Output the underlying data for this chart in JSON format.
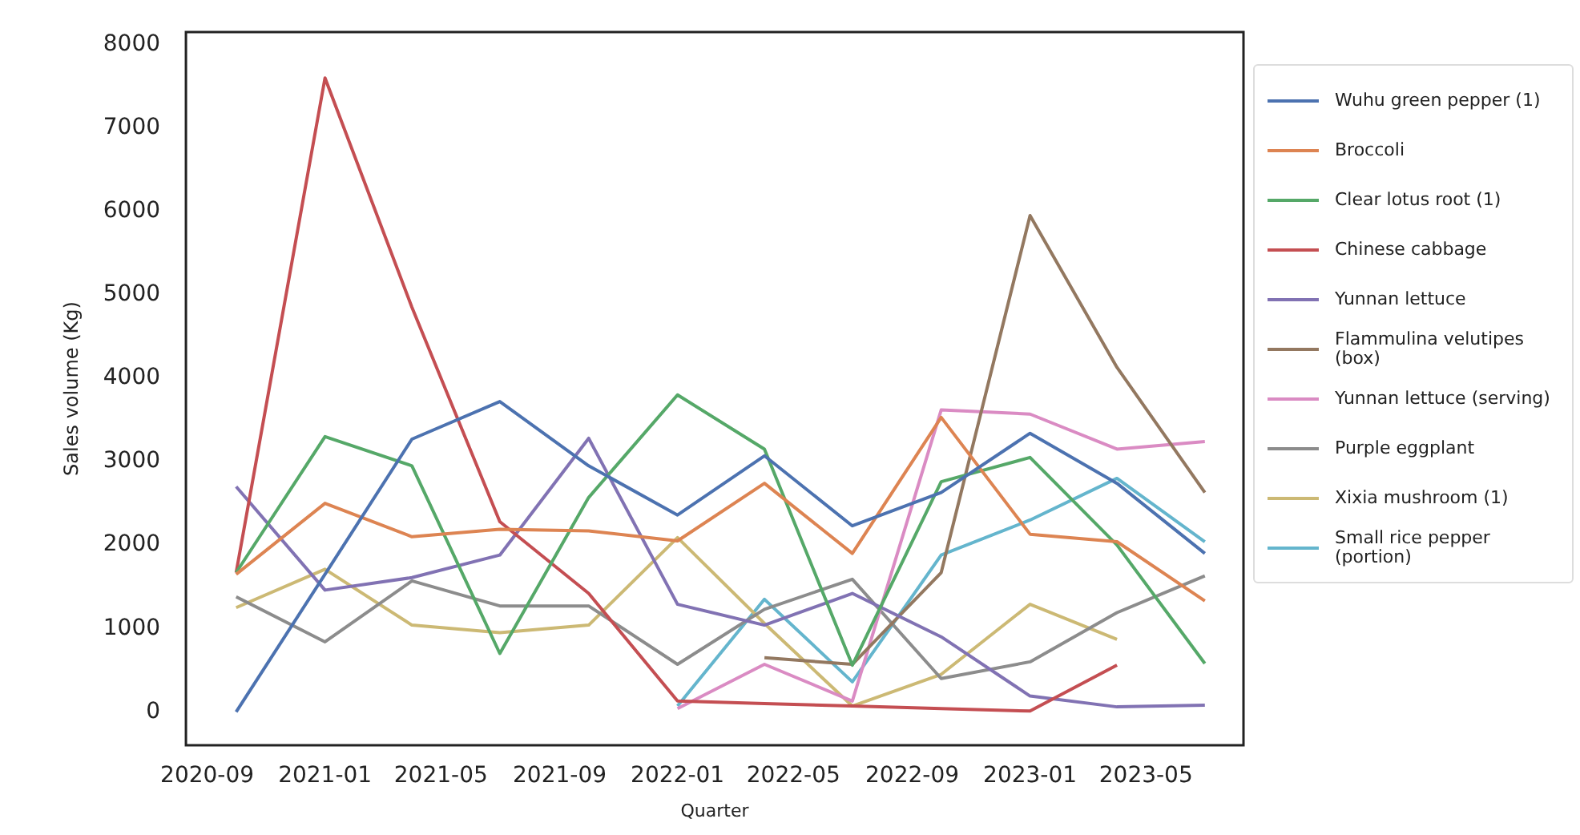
{
  "chart_data": {
    "type": "line",
    "xlabel": "Quarter",
    "ylabel": "Sales volume (Kg)",
    "x": [
      "2020-10-01",
      "2021-01-01",
      "2021-04-01",
      "2021-07-01",
      "2021-10-01",
      "2022-01-01",
      "2022-04-01",
      "2022-07-01",
      "2022-10-01",
      "2023-01-01",
      "2023-04-01",
      "2023-07-01"
    ],
    "series": [
      {
        "name": "Wuhu green pepper (1)",
        "color": "#4c72b0",
        "values": [
          0,
          1650,
          3270,
          3720,
          2950,
          2360,
          3070,
          2230,
          2630,
          3340,
          2740,
          1900
        ]
      },
      {
        "name": "Broccoli",
        "color": "#dd8452",
        "values": [
          1650,
          2500,
          2100,
          2190,
          2170,
          2050,
          2740,
          1900,
          3530,
          2130,
          2040,
          1330
        ]
      },
      {
        "name": "Clear lotus root (1)",
        "color": "#55a868",
        "values": [
          1670,
          3300,
          2950,
          700,
          2570,
          3800,
          3150,
          560,
          2760,
          3050,
          2000,
          580
        ]
      },
      {
        "name": "Chinese cabbage",
        "color": "#c44e52",
        "values": [
          1670,
          7600,
          4850,
          2280,
          1420,
          130,
          100,
          70,
          40,
          10,
          560,
          null
        ]
      },
      {
        "name": "Yunnan lettuce",
        "color": "#8172b3",
        "values": [
          2700,
          1460,
          1610,
          1880,
          3280,
          1290,
          1040,
          1420,
          900,
          190,
          60,
          80
        ]
      },
      {
        "name": "Flammulina velutipes (box)",
        "color": "#937860",
        "values": [
          null,
          null,
          null,
          null,
          null,
          null,
          650,
          570,
          1670,
          5950,
          4130,
          2630
        ]
      },
      {
        "name": "Yunnan lettuce (serving)",
        "color": "#da8bc3",
        "values": [
          null,
          null,
          null,
          null,
          null,
          40,
          570,
          130,
          3620,
          3570,
          3150,
          3240
        ]
      },
      {
        "name": "Purple eggplant",
        "color": "#8c8c8c",
        "values": [
          1380,
          840,
          1570,
          1270,
          1270,
          570,
          1230,
          1590,
          400,
          600,
          1190,
          1630
        ]
      },
      {
        "name": "Xixia mushroom (1)",
        "color": "#ccb974",
        "values": [
          1250,
          1710,
          1040,
          950,
          1040,
          2090,
          1060,
          70,
          450,
          1290,
          870,
          null
        ]
      },
      {
        "name": "Small rice pepper (portion)",
        "color": "#64b5cd",
        "values": [
          null,
          null,
          null,
          null,
          null,
          70,
          1350,
          360,
          1880,
          2300,
          2800,
          2040
        ]
      }
    ],
    "xlim": [
      "2020-08-10",
      "2023-08-10"
    ],
    "xticks": [
      "2020-09",
      "2021-01",
      "2021-05",
      "2021-09",
      "2022-01",
      "2022-05",
      "2022-09",
      "2023-01",
      "2023-05"
    ],
    "ylim": [
      -400,
      8150
    ],
    "yticks": [
      0,
      1000,
      2000,
      3000,
      4000,
      5000,
      6000,
      7000,
      8000
    ],
    "legend": "right"
  }
}
